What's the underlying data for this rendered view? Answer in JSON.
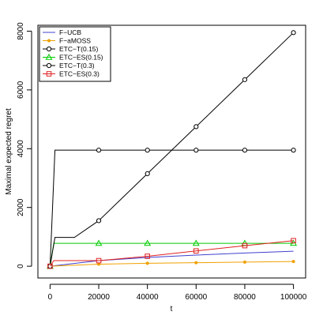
{
  "chart_data": {
    "type": "line",
    "title": "",
    "xlabel": "t",
    "ylabel": "Maximal expected regret",
    "xlim": [
      -5000,
      105000
    ],
    "ylim": [
      -400,
      8200
    ],
    "x_ticks": [
      0,
      20000,
      40000,
      60000,
      80000,
      100000
    ],
    "x_tick_labels": [
      "0",
      "20000",
      "40000",
      "60000",
      "80000",
      "100000"
    ],
    "y_ticks": [
      0,
      2000,
      4000,
      6000,
      8000
    ],
    "y_tick_labels": [
      "0",
      "2000",
      "4000",
      "6000",
      "8000"
    ],
    "grid": false,
    "legend_position": "top-left",
    "series": [
      {
        "name": "F−UCB",
        "color": "#4040d0",
        "marker": "none",
        "x": [
          0,
          20000,
          40000,
          60000,
          80000,
          100000
        ],
        "y": [
          0,
          190,
          300,
          380,
          450,
          510
        ]
      },
      {
        "name": "F−aMOSS",
        "color": "#f0a000",
        "marker": "dot",
        "x": [
          0,
          20000,
          40000,
          60000,
          80000,
          100000
        ],
        "y": [
          0,
          70,
          100,
          120,
          140,
          160
        ]
      },
      {
        "name": "ETC−T(0.15)",
        "color": "#000000",
        "marker": "circle",
        "x": [
          0,
          2000,
          10000,
          11000,
          20000,
          40000,
          60000,
          80000,
          100000
        ],
        "y": [
          0,
          3950,
          3950,
          3950,
          3950,
          3950,
          3950,
          3950,
          3950
        ],
        "marker_x": [
          0,
          20000,
          40000,
          60000,
          80000,
          100000
        ],
        "marker_y": [
          0,
          3950,
          3950,
          3950,
          3950,
          3950
        ]
      },
      {
        "name": "ETC−ES(0.15)",
        "color": "#00cc00",
        "marker": "triangle",
        "x": [
          0,
          1500,
          20000,
          40000,
          60000,
          80000,
          100000
        ],
        "y": [
          0,
          780,
          780,
          780,
          780,
          780,
          780
        ],
        "marker_x": [
          0,
          20000,
          40000,
          60000,
          80000,
          100000
        ],
        "marker_y": [
          0,
          780,
          780,
          780,
          780,
          780
        ]
      },
      {
        "name": "ETC−T(0.3)",
        "color": "#000000",
        "marker": "circle",
        "x": [
          0,
          2000,
          10000,
          20000,
          40000,
          60000,
          80000,
          100000
        ],
        "y": [
          0,
          980,
          980,
          1550,
          3150,
          4750,
          6350,
          7950
        ],
        "marker_x": [
          0,
          20000,
          40000,
          60000,
          80000,
          100000
        ],
        "marker_y": [
          0,
          1550,
          3150,
          4750,
          6350,
          7950
        ]
      },
      {
        "name": "ETC−ES(0.3)",
        "color": "#e02020",
        "marker": "square",
        "x": [
          0,
          1500,
          20000,
          40000,
          60000,
          80000,
          100000
        ],
        "y": [
          0,
          190,
          190,
          340,
          520,
          700,
          870
        ],
        "marker_x": [
          0,
          20000,
          40000,
          60000,
          80000,
          100000
        ],
        "marker_y": [
          0,
          190,
          340,
          520,
          700,
          870
        ]
      }
    ]
  }
}
